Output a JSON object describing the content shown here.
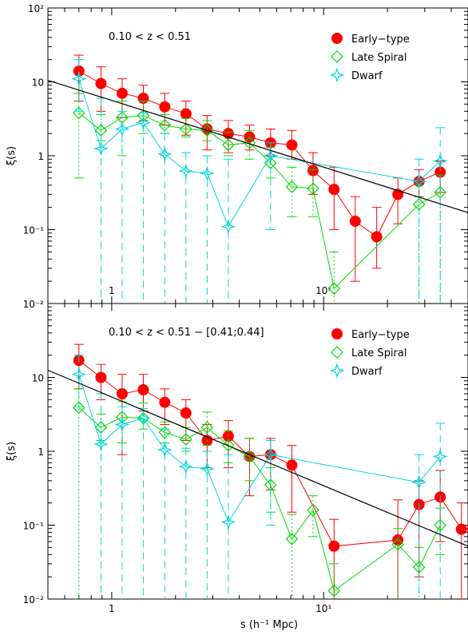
{
  "figure": {
    "xlabel": "s (h⁻¹ Mpc)",
    "colors": {
      "early": "#ff0000",
      "late": "#00dd00",
      "dwarf": "#00d8e0",
      "fit": "#000000"
    },
    "marker_names": {
      "early": "filled-circle",
      "late": "open-diamond",
      "dwarf": "open-star"
    }
  },
  "chart_data": [
    {
      "type": "scatter",
      "title": "0.10 < z < 0.51",
      "ylabel": "ξ(s)",
      "xscale": "log",
      "yscale": "log",
      "xlim": [
        0.5,
        48
      ],
      "ylim": [
        0.01,
        100
      ],
      "y_tick_labels": [
        "10⁻²",
        "10⁻¹",
        "1",
        "10",
        "10²"
      ],
      "x_tick_labels_inside": [
        "1",
        "10¹"
      ],
      "legend_position": "top-right",
      "series": [
        {
          "name": "Early−type",
          "key": "early",
          "x": [
            0.7,
            0.89,
            1.12,
            1.41,
            1.78,
            2.24,
            2.82,
            3.55,
            4.47,
            5.62,
            7.08,
            8.91,
            11.2,
            14.1,
            17.8,
            22.4,
            28.2,
            35.5
          ],
          "y": [
            14,
            9.5,
            7.0,
            6.0,
            4.6,
            3.7,
            2.3,
            2.0,
            1.8,
            1.5,
            1.4,
            0.63,
            0.35,
            0.13,
            0.08,
            0.3,
            0.45,
            0.6
          ],
          "err_up": [
            23,
            16,
            11,
            9,
            7,
            5.5,
            3.5,
            3.0,
            2.6,
            2.3,
            2.2,
            1.1,
            0.7,
            0.28,
            0.2,
            0.5,
            0.65,
            0.85
          ],
          "err_low": [
            5.5,
            4.0,
            3.3,
            3.0,
            2.6,
            1.9,
            1.2,
            1.1,
            1.2,
            1.0,
            0.9,
            0.3,
            0.1,
            0.02,
            0.03,
            0.12,
            0.28,
            0.32
          ]
        },
        {
          "name": "Late Spiral",
          "key": "late",
          "x": [
            0.7,
            0.89,
            1.12,
            1.41,
            1.78,
            2.24,
            2.82,
            3.55,
            4.47,
            5.62,
            7.08,
            8.91,
            11.2,
            28.2,
            35.5
          ],
          "y": [
            3.8,
            2.2,
            3.3,
            3.5,
            2.6,
            2.3,
            2.2,
            1.4,
            1.5,
            0.8,
            0.38,
            0.36,
            0.016,
            0.22,
            0.32
          ],
          "err_up": [
            7,
            3.6,
            5.5,
            5.5,
            3.6,
            3.2,
            3.0,
            2.1,
            2.2,
            1.3,
            0.7,
            0.65,
            0.05,
            0.4,
            0.55
          ],
          "err_low": [
            0.5,
            1.6,
            1.0,
            2.0,
            2.0,
            1.8,
            1.6,
            1.0,
            0.9,
            0.5,
            0.15,
            0.15,
            0.01,
            0.01,
            0.01
          ]
        },
        {
          "name": "Dwarf",
          "key": "dwarf",
          "x": [
            0.7,
            0.89,
            1.12,
            1.41,
            1.78,
            2.24,
            2.82,
            3.55,
            5.62,
            28.2,
            35.5
          ],
          "y": [
            11,
            1.25,
            2.3,
            2.8,
            1.05,
            0.62,
            0.58,
            0.11,
            1.0,
            0.45,
            0.85
          ],
          "err_up": [
            20,
            6,
            4,
            3.8,
            2.0,
            1.1,
            1.0,
            0.9,
            1.5,
            0.9,
            2.4
          ],
          "err_low": [
            4,
            0.01,
            0.01,
            0.01,
            0.01,
            0.01,
            0.01,
            0.01,
            0.1,
            0.01,
            0.01
          ]
        },
        {
          "name": "",
          "key": "fit",
          "type": "line",
          "x": [
            0.5,
            48
          ],
          "y": [
            10.5,
            0.17
          ]
        }
      ]
    },
    {
      "type": "scatter",
      "title": "0.10 < z < 0.51 − [0.41;0.44]",
      "ylabel": "ξ(s)",
      "xscale": "log",
      "yscale": "log",
      "xlim": [
        0.5,
        48
      ],
      "ylim": [
        0.01,
        100
      ],
      "y_tick_labels": [
        "10⁻²",
        "10⁻¹",
        "1",
        "10"
      ],
      "x_tick_labels": [
        "1",
        "10¹"
      ],
      "legend_position": "top-right",
      "series": [
        {
          "name": "Early−type",
          "key": "early",
          "x": [
            0.7,
            0.89,
            1.12,
            1.41,
            1.78,
            2.24,
            2.82,
            3.55,
            4.47,
            5.62,
            7.08,
            11.2,
            22.4,
            28.2,
            35.5,
            44.7
          ],
          "y": [
            17,
            10,
            6.0,
            6.8,
            4.6,
            3.3,
            1.4,
            1.6,
            0.85,
            0.9,
            0.65,
            0.052,
            0.063,
            0.19,
            0.24,
            0.088
          ],
          "err_up": [
            28,
            15,
            11,
            11,
            7,
            5,
            2.3,
            2.6,
            1.5,
            1.5,
            1.2,
            0.12,
            0.22,
            0.4,
            0.55,
            0.2
          ],
          "err_low": [
            7,
            5.0,
            0.9,
            3.5,
            2.3,
            1.4,
            0.6,
            0.6,
            0.25,
            0.3,
            0.15,
            0.01,
            0.01,
            0.02,
            0.06,
            0.01
          ]
        },
        {
          "name": "Late Spiral",
          "key": "late",
          "x": [
            0.7,
            0.89,
            1.12,
            1.41,
            1.78,
            2.24,
            2.82,
            3.55,
            4.47,
            5.62,
            7.08,
            8.91,
            11.2,
            22.4,
            28.2,
            35.5
          ],
          "y": [
            3.9,
            2.1,
            2.9,
            2.8,
            1.8,
            1.45,
            2.1,
            1.2,
            0.85,
            0.35,
            0.065,
            0.16,
            0.013,
            0.055,
            0.027,
            0.1
          ],
          "err_up": [
            7,
            3.2,
            4.7,
            4.5,
            2.5,
            2.1,
            3.4,
            1.9,
            1.5,
            0.6,
            0.14,
            0.25,
            0.03,
            0.09,
            0.05,
            0.17
          ],
          "err_low": [
            0.01,
            1.4,
            1.3,
            2.0,
            1.3,
            1.0,
            1.2,
            0.7,
            0.4,
            0.15,
            0.01,
            0.07,
            0.01,
            0.01,
            0.01,
            0.04
          ]
        },
        {
          "name": "Dwarf",
          "key": "dwarf",
          "x": [
            0.7,
            0.89,
            1.12,
            1.41,
            1.78,
            2.24,
            2.82,
            3.55,
            5.62,
            28.2,
            35.5
          ],
          "y": [
            11,
            1.25,
            2.3,
            2.8,
            1.05,
            0.62,
            0.58,
            0.11,
            0.9,
            0.38,
            0.85
          ],
          "err_up": [
            20,
            6,
            4,
            3.8,
            2.0,
            1.1,
            1.0,
            0.9,
            1.4,
            0.9,
            2.4
          ],
          "err_low": [
            4,
            0.01,
            0.01,
            0.01,
            0.01,
            0.01,
            0.01,
            0.01,
            0.1,
            0.01,
            0.01
          ]
        },
        {
          "name": "",
          "key": "fit",
          "type": "line",
          "x": [
            0.5,
            48
          ],
          "y": [
            12.5,
            0.052
          ]
        }
      ]
    }
  ]
}
